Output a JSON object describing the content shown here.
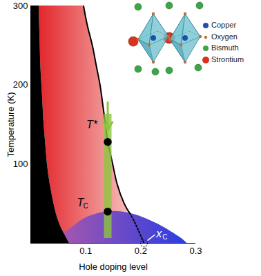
{
  "chart_data": {
    "type": "phase_diagram",
    "xlabel": "Hole doping level",
    "ylabel": "Temperature (K)",
    "xlim": [
      0,
      0.3
    ],
    "xticks": [
      0.1,
      0.2,
      0.3
    ],
    "ylim": [
      0,
      300
    ],
    "yticks": [
      100,
      200,
      300
    ],
    "grid": false,
    "regions": {
      "T": [
        300,
        275,
        250,
        225,
        200,
        175,
        150,
        125,
        100,
        75,
        50,
        25,
        0
      ],
      "antiferromagnet": {
        "color": "#000000",
        "x": [
          0.015,
          0.016,
          0.017,
          0.018,
          0.02,
          0.022,
          0.024,
          0.027,
          0.03,
          0.035,
          0.042,
          0.052,
          0.07
        ]
      },
      "pseudogap": {
        "colors": [
          "#e3262b",
          "#f8d6d2"
        ],
        "x": [
          0.096,
          0.103,
          0.112,
          0.119,
          0.126,
          0.131,
          0.136,
          0.141,
          0.149,
          0.157,
          0.17,
          0.19,
          0.206
        ]
      }
    },
    "superconducting_dome": {
      "colors": [
        "#b35aa6",
        "#2b3de4"
      ],
      "x": [
        0.03,
        0.05,
        0.075,
        0.1,
        0.14,
        0.18,
        0.21,
        0.24,
        0.27,
        0.284
      ],
      "T": [
        0,
        8,
        20,
        32,
        40,
        38,
        31,
        21,
        8,
        0
      ]
    },
    "T_star_line": {
      "color": "#000000",
      "line_style": "solid",
      "x": [
        0.096,
        0.103,
        0.112,
        0.119,
        0.126,
        0.131,
        0.136,
        0.141,
        0.149,
        0.157,
        0.17,
        0.18
      ],
      "T": [
        300,
        275,
        250,
        225,
        200,
        175,
        150,
        125,
        100,
        75,
        50,
        38
      ]
    },
    "T_star_extension": {
      "color": "#000000",
      "line_style": "dotted",
      "x": [
        0.18,
        0.19,
        0.206
      ],
      "T": [
        38,
        25,
        0
      ]
    },
    "measurement_bar": {
      "color": "#8cc63f",
      "x": 0.14,
      "T": [
        6,
        163
      ]
    },
    "arrow": {
      "color": "#8cc63f",
      "x": 0.14,
      "T": [
        178,
        143
      ]
    },
    "points": {
      "color": "#000000",
      "marker": "filled",
      "x": [
        0.14,
        0.14
      ],
      "T": [
        128,
        40
      ]
    },
    "critical_point": {
      "x": 0.206,
      "T": 0,
      "color": "#222222",
      "marker": "open_dotted",
      "label": {
        "text": "x",
        "subscript": "C",
        "x": 0.228,
        "T": 12,
        "color": "#ffffff"
      }
    },
    "annotations": [
      {
        "text": "T*",
        "x": 0.101,
        "T": 150,
        "color": "#000000"
      },
      {
        "text": "T",
        "subscript": "C",
        "x": 0.084,
        "T": 51,
        "color": "#000000"
      }
    ],
    "inset_key": [
      {
        "label": "Copper",
        "color": "#1f4fae"
      },
      {
        "label": "Oxygen",
        "color": "#b5703f"
      },
      {
        "label": "Bismuth",
        "color": "#3da447"
      },
      {
        "label": "Strontium",
        "color": "#d8331f"
      }
    ]
  }
}
